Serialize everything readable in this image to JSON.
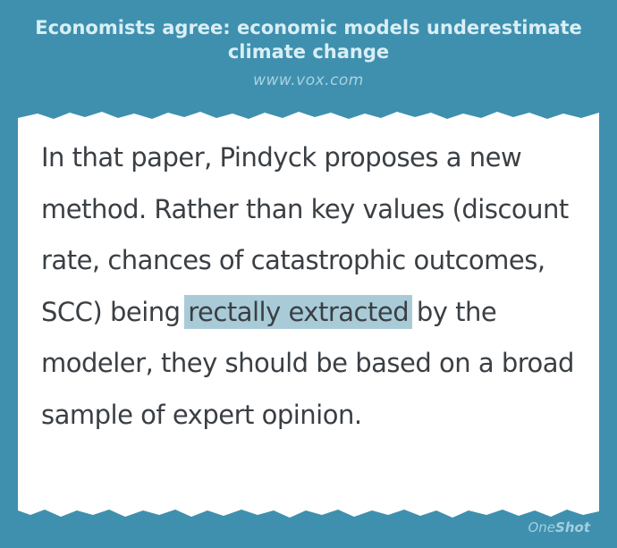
{
  "header": {
    "headline": "Economists agree: economic models underestimate climate change",
    "source": "www.vox.com"
  },
  "quote": {
    "before": "In that paper, Pindyck proposes a new method. Rather than key values (discount rate, chances of catastrophic outcomes, SCC) being ",
    "highlight": "rectally extracted",
    "after": " by the modeler, they should be based on a broad sample of expert opinion."
  },
  "brand": {
    "part1": "One",
    "part2": "Shot"
  },
  "colors": {
    "background": "#3f90ae",
    "paper": "#ffffff",
    "highlight": "#a9cbd8",
    "text": "#3a3f44"
  }
}
